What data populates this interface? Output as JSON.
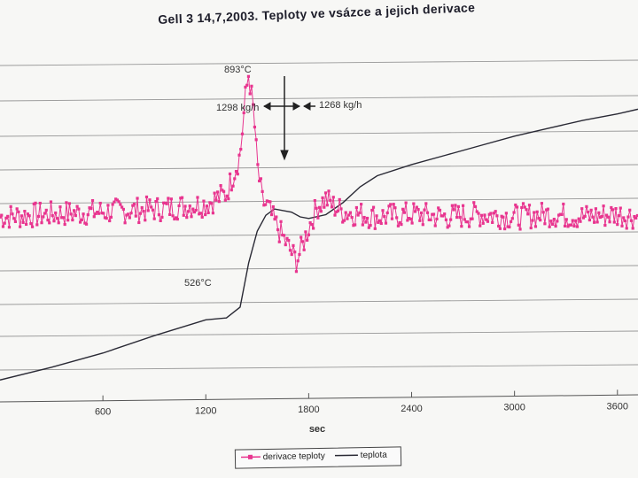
{
  "title": "Gell 3 14,7,2003. Teploty  ve vsázce a jejich derivace",
  "annotations": {
    "peak_temp": "893°C",
    "flow_left": "1298 kg/h",
    "flow_right": "1268 kg/h",
    "start_temp": "526°C"
  },
  "colors": {
    "derivative": "#e8358f",
    "temperature": "#2a2a35",
    "grid": "#9a9a9a",
    "background": "#f7f7f5"
  },
  "legend": {
    "derivative_label": "derivace teploty",
    "temperature_label": "teplota"
  },
  "chart_data": {
    "type": "line",
    "title": "Gell 3 14,7,2003. Teploty  ve vsázce a jejich derivace",
    "xlabel": "sec",
    "ylabel": "",
    "x_ticks": [
      600,
      1200,
      1800,
      2400,
      3000,
      3600
    ],
    "xlim": [
      0,
      3720
    ],
    "grid": true,
    "legend_position": "bottom",
    "series": [
      {
        "name": "derivace teploty",
        "style": "line-with-markers",
        "relative_scale": "derivative units (unlabeled)",
        "x": [
          0,
          300,
          600,
          900,
          1200,
          1320,
          1400,
          1430,
          1450,
          1480,
          1500,
          1530,
          1560,
          1600,
          1650,
          1700,
          1730,
          1760,
          1800,
          1850,
          1900,
          1950,
          2000,
          2100,
          2200,
          2400,
          2600,
          2800,
          3000,
          3200,
          3400,
          3600,
          3720
        ],
        "y": [
          0.0,
          0.05,
          0.1,
          0.15,
          0.25,
          0.45,
          1.2,
          2.3,
          2.8,
          2.0,
          1.0,
          0.3,
          0.2,
          -0.1,
          -0.4,
          -0.7,
          -0.85,
          -0.6,
          -0.2,
          0.2,
          0.35,
          0.2,
          0.1,
          0.05,
          0.0,
          0.05,
          0.0,
          0.05,
          0.0,
          0.05,
          0.0,
          0.05,
          0.0
        ]
      },
      {
        "name": "teplota",
        "style": "line",
        "relative_scale": "temperature (°C, unlabeled axis)",
        "x": [
          0,
          300,
          600,
          900,
          1200,
          1320,
          1400,
          1450,
          1500,
          1550,
          1600,
          1700,
          1750,
          1800,
          1900,
          2000,
          2100,
          2200,
          2400,
          2600,
          2800,
          3000,
          3200,
          3400,
          3600,
          3720
        ],
        "y": [
          330,
          370,
          415,
          470,
          520,
          526,
          560,
          700,
          800,
          850,
          870,
          860,
          845,
          840,
          852,
          890,
          940,
          975,
          1010,
          1040,
          1070,
          1100,
          1125,
          1150,
          1170,
          1185
        ]
      }
    ]
  }
}
